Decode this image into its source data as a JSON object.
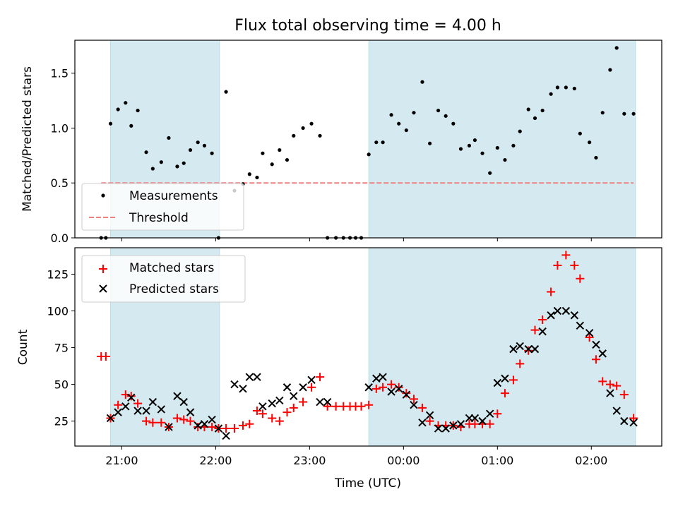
{
  "chart_data": [
    {
      "type": "scatter",
      "title": "Flux total observing time = 4.00 h",
      "xlabel": "",
      "ylabel": "Matched/Predicted stars",
      "ylim": [
        0,
        1.8
      ],
      "yticks": [
        "0.0",
        "0.5",
        "1.0",
        "1.5"
      ],
      "x_range_hours": [
        20.5,
        26.75
      ],
      "shaded_intervals_hours": [
        [
          20.88,
          22.04
        ],
        [
          23.63,
          26.47
        ]
      ],
      "threshold": 0.5,
      "threshold_color": "#f08080",
      "shade_color": "#d4eaf0",
      "legend": {
        "position": "lower-left",
        "entries": [
          "Measurements",
          "Threshold"
        ]
      },
      "series": [
        {
          "name": "Measurements",
          "marker": "dot",
          "color": "#000000",
          "x": [
            20.78,
            20.83,
            20.88,
            20.96,
            21.04,
            21.1,
            21.17,
            21.26,
            21.33,
            21.42,
            21.5,
            21.59,
            21.66,
            21.73,
            21.81,
            21.88,
            21.96,
            22.03,
            22.11,
            22.2,
            22.29,
            22.36,
            22.44,
            22.5,
            22.6,
            22.68,
            22.76,
            22.83,
            22.93,
            23.02,
            23.11,
            23.19,
            23.28,
            23.36,
            23.43,
            23.49,
            23.55,
            23.63,
            23.71,
            23.78,
            23.87,
            23.95,
            24.03,
            24.11,
            24.2,
            24.28,
            24.37,
            24.45,
            24.53,
            24.61,
            24.7,
            24.76,
            24.84,
            24.92,
            25.0,
            25.08,
            25.17,
            25.24,
            25.33,
            25.4,
            25.48,
            25.57,
            25.64,
            25.73,
            25.82,
            25.88,
            25.98,
            26.05,
            26.12,
            26.2,
            26.27,
            26.35,
            26.45
          ],
          "y": [
            0.0,
            0.0,
            1.04,
            1.17,
            1.23,
            1.02,
            1.16,
            0.78,
            0.63,
            0.69,
            0.91,
            0.65,
            0.68,
            0.8,
            0.87,
            0.84,
            0.77,
            0.0,
            1.33,
            0.43,
            0.49,
            0.58,
            0.55,
            0.77,
            0.67,
            0.8,
            0.71,
            0.93,
            1.0,
            1.04,
            0.93,
            0.0,
            0.0,
            0.0,
            0.0,
            0.0,
            0.0,
            0.76,
            0.87,
            0.87,
            1.12,
            1.04,
            0.98,
            1.14,
            1.42,
            0.86,
            1.16,
            1.11,
            1.04,
            0.81,
            0.84,
            0.89,
            0.77,
            0.59,
            0.82,
            0.71,
            0.84,
            0.97,
            1.17,
            1.09,
            1.16,
            1.31,
            1.37,
            1.37,
            1.36,
            0.95,
            0.87,
            0.73,
            1.14,
            1.53,
            1.73,
            1.13,
            1.13
          ]
        }
      ]
    },
    {
      "type": "scatter",
      "title": "",
      "xlabel": "Time (UTC)",
      "ylabel": "Count",
      "ylim": [
        8,
        143
      ],
      "yticks": [
        "25",
        "50",
        "75",
        "100",
        "125"
      ],
      "xtick_positions_hours": [
        21,
        22,
        23,
        24,
        25,
        26
      ],
      "xticks": [
        "21:00",
        "22:00",
        "23:00",
        "00:00",
        "01:00",
        "02:00"
      ],
      "x_range_hours": [
        20.5,
        26.75
      ],
      "shaded_intervals_hours": [
        [
          20.88,
          22.04
        ],
        [
          23.63,
          26.47
        ]
      ],
      "shade_color": "#d4eaf0",
      "legend": {
        "position": "upper-left",
        "entries": [
          "Matched stars",
          "Predicted stars"
        ]
      },
      "series": [
        {
          "name": "Matched stars",
          "marker": "plus",
          "color": "#ff0000",
          "x": [
            20.78,
            20.83,
            20.88,
            20.96,
            21.04,
            21.1,
            21.17,
            21.26,
            21.33,
            21.42,
            21.5,
            21.59,
            21.66,
            21.73,
            21.81,
            21.88,
            21.96,
            22.03,
            22.11,
            22.2,
            22.29,
            22.36,
            22.44,
            22.5,
            22.6,
            22.68,
            22.76,
            22.83,
            22.93,
            23.02,
            23.11,
            23.19,
            23.28,
            23.36,
            23.43,
            23.49,
            23.55,
            23.63,
            23.71,
            23.78,
            23.87,
            23.95,
            24.03,
            24.11,
            24.2,
            24.28,
            24.37,
            24.45,
            24.53,
            24.61,
            24.7,
            24.76,
            24.84,
            24.92,
            25.0,
            25.08,
            25.17,
            25.24,
            25.33,
            25.4,
            25.48,
            25.57,
            25.64,
            25.73,
            25.82,
            25.88,
            25.98,
            26.05,
            26.12,
            26.2,
            26.27,
            26.35,
            26.45
          ],
          "y": [
            69,
            69,
            27,
            36,
            43,
            42,
            37,
            25,
            24,
            24,
            21,
            27,
            26,
            25,
            21,
            21,
            21,
            20,
            20,
            20,
            22,
            23,
            32,
            30,
            27,
            25,
            31,
            34,
            38,
            48,
            55,
            35,
            35,
            35,
            35,
            35,
            35,
            36,
            47,
            48,
            50,
            48,
            44,
            40,
            34,
            25,
            22,
            22,
            22,
            21,
            23,
            23,
            23,
            23,
            30,
            44,
            53,
            64,
            73,
            87,
            94,
            113,
            131,
            138,
            131,
            122,
            82,
            67,
            52,
            50,
            49,
            43,
            27
          ]
        },
        {
          "name": "Predicted stars",
          "marker": "x",
          "color": "#000000",
          "x": [
            20.88,
            20.96,
            21.04,
            21.1,
            21.17,
            21.26,
            21.33,
            21.42,
            21.5,
            21.59,
            21.66,
            21.73,
            21.81,
            21.88,
            21.96,
            22.03,
            22.11,
            22.2,
            22.29,
            22.36,
            22.44,
            22.5,
            22.6,
            22.68,
            22.76,
            22.83,
            22.93,
            23.02,
            23.11,
            23.19,
            23.63,
            23.71,
            23.78,
            23.87,
            23.95,
            24.03,
            24.11,
            24.2,
            24.28,
            24.37,
            24.45,
            24.53,
            24.61,
            24.7,
            24.76,
            24.84,
            24.92,
            25.0,
            25.08,
            25.17,
            25.24,
            25.33,
            25.4,
            25.48,
            25.57,
            25.64,
            25.73,
            25.82,
            25.88,
            25.98,
            26.05,
            26.12,
            26.2,
            26.27,
            26.35,
            26.45
          ],
          "y": [
            27,
            31,
            35,
            41,
            32,
            32,
            38,
            33,
            21,
            42,
            38,
            31,
            22,
            23,
            26,
            20,
            15,
            50,
            47,
            55,
            55,
            35,
            37,
            39,
            48,
            42,
            48,
            53,
            38,
            38,
            48,
            54,
            55,
            45,
            47,
            43,
            36,
            24,
            29,
            20,
            20,
            22,
            23,
            27,
            27,
            25,
            30,
            51,
            54,
            74,
            76,
            74,
            74,
            86,
            97,
            100,
            100,
            97,
            90,
            85,
            77,
            71,
            44,
            32,
            25,
            24
          ]
        }
      ]
    }
  ]
}
